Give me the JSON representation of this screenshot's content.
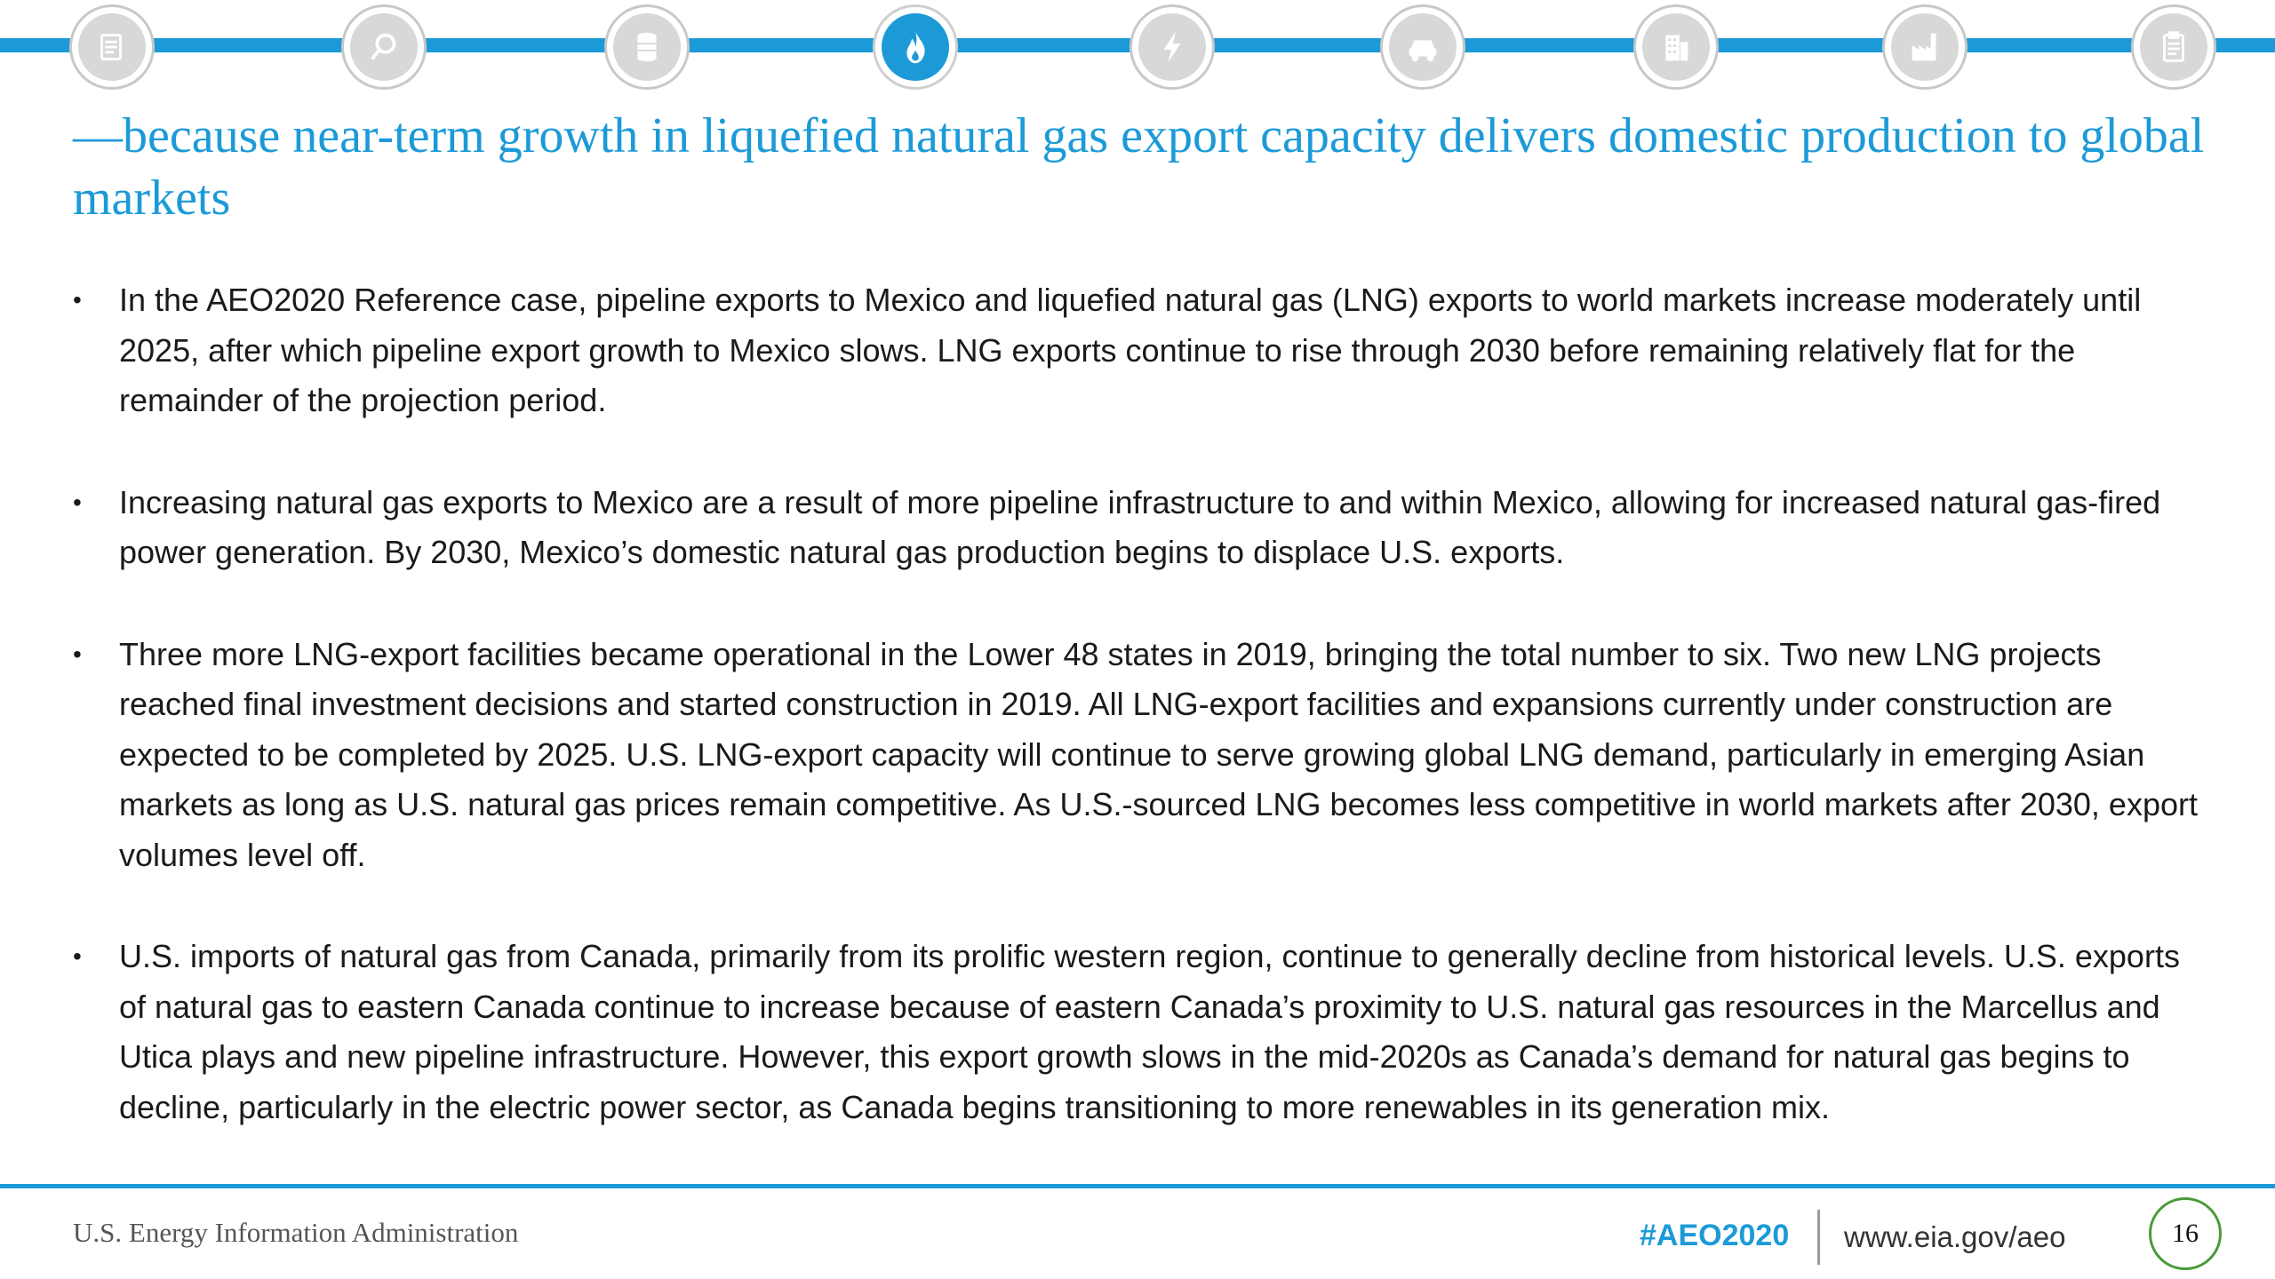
{
  "nav": {
    "items": [
      {
        "icon": "document-icon"
      },
      {
        "icon": "magnifier-icon"
      },
      {
        "icon": "oil-barrel-icon"
      },
      {
        "icon": "natural-gas-flame-icon",
        "active": true
      },
      {
        "icon": "electricity-bolt-icon"
      },
      {
        "icon": "car-icon"
      },
      {
        "icon": "buildings-icon"
      },
      {
        "icon": "factory-icon"
      },
      {
        "icon": "clipboard-icon"
      }
    ],
    "accent_color": "#1c9ad8",
    "inactive_color": "#d8d8d8"
  },
  "title": "—because near-term growth in liquefied natural gas export capacity delivers domestic production to global markets",
  "bullets": [
    "In the AEO2020 Reference case, pipeline exports to Mexico and liquefied natural gas (LNG) exports to world markets increase moderately until 2025, after which pipeline export growth to Mexico slows. LNG exports continue to rise through 2030 before remaining relatively flat for the remainder of the projection period.",
    "Increasing natural gas exports to Mexico are a result of more pipeline infrastructure to and within Mexico, allowing for increased natural gas-fired power generation. By 2030, Mexico’s domestic natural gas production begins to displace U.S. exports.",
    "Three more LNG-export facilities became operational in the Lower 48 states in 2019, bringing the total number to six. Two new LNG projects reached final investment decisions and started construction in 2019. All LNG-export facilities and expansions currently under construction are expected to be completed by 2025. U.S. LNG-export capacity will continue to serve growing global LNG demand, particularly in emerging Asian markets as long as U.S. natural gas prices remain competitive. As U.S.-sourced LNG becomes less competitive in world markets after 2030, export volumes level off.",
    "U.S. imports of natural gas from Canada, primarily from its prolific western region, continue to generally decline from historical levels. U.S. exports of natural gas to eastern Canada continue to increase because of eastern Canada’s proximity to U.S. natural gas resources in the Marcellus and Utica plays and new pipeline infrastructure. However, this export growth slows in the mid-2020s as Canada’s demand for natural gas begins to decline, particularly in the electric power sector, as Canada begins transitioning to more renewables in its generation mix."
  ],
  "bullet_marker": "•",
  "footer": {
    "agency": "U.S. Energy Information Administration",
    "hashtag": "#AEO2020",
    "website": "www.eia.gov/aeo",
    "page_number": "16"
  }
}
